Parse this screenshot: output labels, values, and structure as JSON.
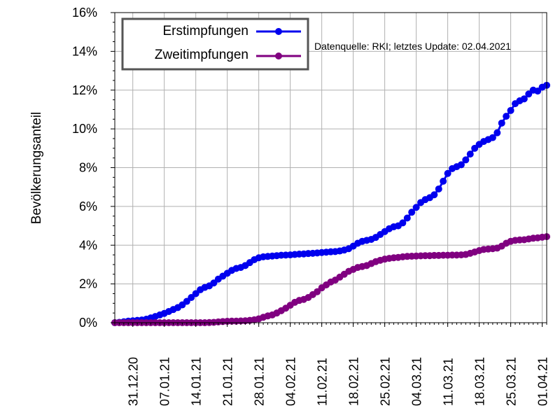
{
  "chart_data": {
    "type": "line",
    "title": "",
    "xlabel": "",
    "ylabel": "Bevölkerungsanteil",
    "annotation": "Datenquelle: RKI; letztes Update: 02.04.2021",
    "ylim": [
      0,
      16
    ],
    "xlim": [
      "2020-12-27",
      "2021-04-02"
    ],
    "grid": true,
    "legend_position": "top-left",
    "y_ticks": [
      {
        "value": 0,
        "label": "0%"
      },
      {
        "value": 2,
        "label": "2%"
      },
      {
        "value": 4,
        "label": "4%"
      },
      {
        "value": 6,
        "label": "6%"
      },
      {
        "value": 8,
        "label": "8%"
      },
      {
        "value": 10,
        "label": "10%"
      },
      {
        "value": 12,
        "label": "12%"
      },
      {
        "value": 14,
        "label": "14%"
      },
      {
        "value": 16,
        "label": "16%"
      }
    ],
    "x_ticks": [
      {
        "date": "2020-12-31",
        "label": "31.12.20"
      },
      {
        "date": "2021-01-07",
        "label": "07.01.21"
      },
      {
        "date": "2021-01-14",
        "label": "14.01.21"
      },
      {
        "date": "2021-01-21",
        "label": "21.01.21"
      },
      {
        "date": "2021-01-28",
        "label": "28.01.21"
      },
      {
        "date": "2021-02-04",
        "label": "04.02.21"
      },
      {
        "date": "2021-02-11",
        "label": "11.02.21"
      },
      {
        "date": "2021-02-18",
        "label": "18.02.21"
      },
      {
        "date": "2021-02-25",
        "label": "25.02.21"
      },
      {
        "date": "2021-03-04",
        "label": "04.03.21"
      },
      {
        "date": "2021-03-11",
        "label": "11.03.21"
      },
      {
        "date": "2021-03-18",
        "label": "18.03.21"
      },
      {
        "date": "2021-03-25",
        "label": "25.03.21"
      },
      {
        "date": "2021-04-01",
        "label": "01.04.21"
      }
    ],
    "series": [
      {
        "name": "Erstimpfungen",
        "color": "#0000ee",
        "points": [
          [
            "2020-12-27",
            0.0
          ],
          [
            "2020-12-28",
            0.02
          ],
          [
            "2020-12-29",
            0.05
          ],
          [
            "2020-12-30",
            0.08
          ],
          [
            "2020-12-31",
            0.1
          ],
          [
            "2021-01-01",
            0.12
          ],
          [
            "2021-01-02",
            0.14
          ],
          [
            "2021-01-03",
            0.18
          ],
          [
            "2021-01-04",
            0.25
          ],
          [
            "2021-01-05",
            0.32
          ],
          [
            "2021-01-06",
            0.4
          ],
          [
            "2021-01-07",
            0.48
          ],
          [
            "2021-01-08",
            0.58
          ],
          [
            "2021-01-09",
            0.68
          ],
          [
            "2021-01-10",
            0.78
          ],
          [
            "2021-01-11",
            0.92
          ],
          [
            "2021-01-12",
            1.1
          ],
          [
            "2021-01-13",
            1.3
          ],
          [
            "2021-01-14",
            1.5
          ],
          [
            "2021-01-15",
            1.7
          ],
          [
            "2021-01-16",
            1.82
          ],
          [
            "2021-01-17",
            1.9
          ],
          [
            "2021-01-18",
            2.05
          ],
          [
            "2021-01-19",
            2.25
          ],
          [
            "2021-01-20",
            2.4
          ],
          [
            "2021-01-21",
            2.55
          ],
          [
            "2021-01-22",
            2.7
          ],
          [
            "2021-01-23",
            2.8
          ],
          [
            "2021-01-24",
            2.85
          ],
          [
            "2021-01-25",
            2.95
          ],
          [
            "2021-01-26",
            3.1
          ],
          [
            "2021-01-27",
            3.25
          ],
          [
            "2021-01-28",
            3.35
          ],
          [
            "2021-01-29",
            3.4
          ],
          [
            "2021-01-30",
            3.42
          ],
          [
            "2021-01-31",
            3.44
          ],
          [
            "2021-02-01",
            3.46
          ],
          [
            "2021-02-02",
            3.48
          ],
          [
            "2021-02-03",
            3.49
          ],
          [
            "2021-02-04",
            3.5
          ],
          [
            "2021-02-05",
            3.52
          ],
          [
            "2021-02-06",
            3.54
          ],
          [
            "2021-02-07",
            3.55
          ],
          [
            "2021-02-08",
            3.57
          ],
          [
            "2021-02-09",
            3.58
          ],
          [
            "2021-02-10",
            3.6
          ],
          [
            "2021-02-11",
            3.62
          ],
          [
            "2021-02-12",
            3.64
          ],
          [
            "2021-02-13",
            3.66
          ],
          [
            "2021-02-14",
            3.67
          ],
          [
            "2021-02-15",
            3.7
          ],
          [
            "2021-02-16",
            3.75
          ],
          [
            "2021-02-17",
            3.82
          ],
          [
            "2021-02-18",
            3.95
          ],
          [
            "2021-02-19",
            4.1
          ],
          [
            "2021-02-20",
            4.2
          ],
          [
            "2021-02-21",
            4.25
          ],
          [
            "2021-02-22",
            4.3
          ],
          [
            "2021-02-23",
            4.4
          ],
          [
            "2021-02-24",
            4.55
          ],
          [
            "2021-02-25",
            4.7
          ],
          [
            "2021-02-26",
            4.85
          ],
          [
            "2021-02-27",
            4.95
          ],
          [
            "2021-02-28",
            5.0
          ],
          [
            "2021-03-01",
            5.15
          ],
          [
            "2021-03-02",
            5.4
          ],
          [
            "2021-03-03",
            5.7
          ],
          [
            "2021-03-04",
            5.95
          ],
          [
            "2021-03-05",
            6.2
          ],
          [
            "2021-03-06",
            6.35
          ],
          [
            "2021-03-07",
            6.45
          ],
          [
            "2021-03-08",
            6.6
          ],
          [
            "2021-03-09",
            6.9
          ],
          [
            "2021-03-10",
            7.3
          ],
          [
            "2021-03-11",
            7.7
          ],
          [
            "2021-03-12",
            7.95
          ],
          [
            "2021-03-13",
            8.05
          ],
          [
            "2021-03-14",
            8.15
          ],
          [
            "2021-03-15",
            8.4
          ],
          [
            "2021-03-16",
            8.7
          ],
          [
            "2021-03-17",
            9.0
          ],
          [
            "2021-03-18",
            9.2
          ],
          [
            "2021-03-19",
            9.35
          ],
          [
            "2021-03-20",
            9.45
          ],
          [
            "2021-03-21",
            9.55
          ],
          [
            "2021-03-22",
            9.8
          ],
          [
            "2021-03-23",
            10.3
          ],
          [
            "2021-03-24",
            10.65
          ],
          [
            "2021-03-25",
            10.95
          ],
          [
            "2021-03-26",
            11.3
          ],
          [
            "2021-03-27",
            11.45
          ],
          [
            "2021-03-28",
            11.55
          ],
          [
            "2021-03-29",
            11.8
          ],
          [
            "2021-03-30",
            12.0
          ],
          [
            "2021-03-31",
            11.95
          ],
          [
            "2021-04-01",
            12.15
          ],
          [
            "2021-04-02",
            12.25
          ]
        ]
      },
      {
        "name": "Zweitimpfungen",
        "color": "#800080",
        "points": [
          [
            "2020-12-27",
            0.0
          ],
          [
            "2020-12-28",
            0.0
          ],
          [
            "2020-12-29",
            0.0
          ],
          [
            "2020-12-30",
            0.0
          ],
          [
            "2020-12-31",
            0.0
          ],
          [
            "2021-01-01",
            0.0
          ],
          [
            "2021-01-02",
            0.0
          ],
          [
            "2021-01-03",
            0.0
          ],
          [
            "2021-01-04",
            0.0
          ],
          [
            "2021-01-05",
            0.0
          ],
          [
            "2021-01-06",
            0.0
          ],
          [
            "2021-01-07",
            0.0
          ],
          [
            "2021-01-08",
            0.0
          ],
          [
            "2021-01-09",
            0.0
          ],
          [
            "2021-01-10",
            0.0
          ],
          [
            "2021-01-11",
            0.0
          ],
          [
            "2021-01-12",
            0.0
          ],
          [
            "2021-01-13",
            0.0
          ],
          [
            "2021-01-14",
            0.0
          ],
          [
            "2021-01-15",
            0.0
          ],
          [
            "2021-01-16",
            0.0
          ],
          [
            "2021-01-17",
            0.01
          ],
          [
            "2021-01-18",
            0.02
          ],
          [
            "2021-01-19",
            0.04
          ],
          [
            "2021-01-20",
            0.06
          ],
          [
            "2021-01-21",
            0.07
          ],
          [
            "2021-01-22",
            0.08
          ],
          [
            "2021-01-23",
            0.08
          ],
          [
            "2021-01-24",
            0.09
          ],
          [
            "2021-01-25",
            0.1
          ],
          [
            "2021-01-26",
            0.12
          ],
          [
            "2021-01-27",
            0.15
          ],
          [
            "2021-01-28",
            0.2
          ],
          [
            "2021-01-29",
            0.28
          ],
          [
            "2021-01-30",
            0.35
          ],
          [
            "2021-01-31",
            0.4
          ],
          [
            "2021-02-01",
            0.5
          ],
          [
            "2021-02-02",
            0.62
          ],
          [
            "2021-02-03",
            0.75
          ],
          [
            "2021-02-04",
            0.9
          ],
          [
            "2021-02-05",
            1.05
          ],
          [
            "2021-02-06",
            1.15
          ],
          [
            "2021-02-07",
            1.2
          ],
          [
            "2021-02-08",
            1.3
          ],
          [
            "2021-02-09",
            1.45
          ],
          [
            "2021-02-10",
            1.6
          ],
          [
            "2021-02-11",
            1.8
          ],
          [
            "2021-02-12",
            1.95
          ],
          [
            "2021-02-13",
            2.1
          ],
          [
            "2021-02-14",
            2.2
          ],
          [
            "2021-02-15",
            2.35
          ],
          [
            "2021-02-16",
            2.5
          ],
          [
            "2021-02-17",
            2.65
          ],
          [
            "2021-02-18",
            2.75
          ],
          [
            "2021-02-19",
            2.85
          ],
          [
            "2021-02-20",
            2.9
          ],
          [
            "2021-02-21",
            2.95
          ],
          [
            "2021-02-22",
            3.05
          ],
          [
            "2021-02-23",
            3.15
          ],
          [
            "2021-02-24",
            3.22
          ],
          [
            "2021-02-25",
            3.28
          ],
          [
            "2021-02-26",
            3.32
          ],
          [
            "2021-02-27",
            3.35
          ],
          [
            "2021-02-28",
            3.37
          ],
          [
            "2021-03-01",
            3.4
          ],
          [
            "2021-03-02",
            3.42
          ],
          [
            "2021-03-03",
            3.43
          ],
          [
            "2021-03-04",
            3.44
          ],
          [
            "2021-03-05",
            3.45
          ],
          [
            "2021-03-06",
            3.46
          ],
          [
            "2021-03-07",
            3.46
          ],
          [
            "2021-03-08",
            3.47
          ],
          [
            "2021-03-09",
            3.47
          ],
          [
            "2021-03-10",
            3.48
          ],
          [
            "2021-03-11",
            3.48
          ],
          [
            "2021-03-12",
            3.49
          ],
          [
            "2021-03-13",
            3.49
          ],
          [
            "2021-03-14",
            3.5
          ],
          [
            "2021-03-15",
            3.52
          ],
          [
            "2021-03-16",
            3.58
          ],
          [
            "2021-03-17",
            3.65
          ],
          [
            "2021-03-18",
            3.72
          ],
          [
            "2021-03-19",
            3.78
          ],
          [
            "2021-03-20",
            3.8
          ],
          [
            "2021-03-21",
            3.82
          ],
          [
            "2021-03-22",
            3.85
          ],
          [
            "2021-03-23",
            3.95
          ],
          [
            "2021-03-24",
            4.1
          ],
          [
            "2021-03-25",
            4.2
          ],
          [
            "2021-03-26",
            4.25
          ],
          [
            "2021-03-27",
            4.27
          ],
          [
            "2021-03-28",
            4.28
          ],
          [
            "2021-03-29",
            4.32
          ],
          [
            "2021-03-30",
            4.36
          ],
          [
            "2021-03-31",
            4.38
          ],
          [
            "2021-04-01",
            4.41
          ],
          [
            "2021-04-02",
            4.44
          ]
        ]
      }
    ]
  }
}
